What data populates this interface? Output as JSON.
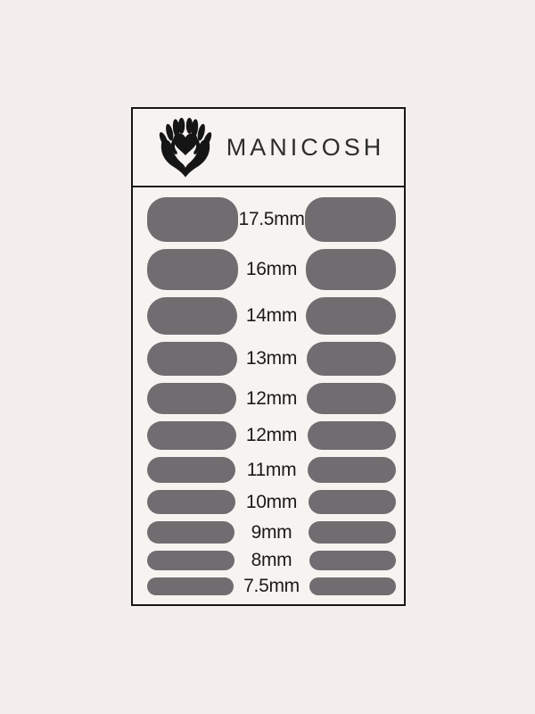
{
  "colors": {
    "page_bg": "#f4efee",
    "card_bg": "#f7f3f1",
    "line": "#161616",
    "brand_ink": "#2d2d2d",
    "label_ink": "#1b1b1b",
    "swatch": "#716c70"
  },
  "header": {
    "brand": "MANICOSH",
    "logo_icon": "hands-cradling-heart-icon"
  },
  "size_chart": {
    "description": "nail strip size rows, largest to smallest",
    "rows": [
      {
        "label": "17.5mm"
      },
      {
        "label": "16mm"
      },
      {
        "label": "14mm"
      },
      {
        "label": "13mm"
      },
      {
        "label": "12mm"
      },
      {
        "label": "12mm"
      },
      {
        "label": "11mm"
      },
      {
        "label": "10mm"
      },
      {
        "label": "9mm"
      },
      {
        "label": "8mm"
      },
      {
        "label": "7.5mm"
      }
    ]
  }
}
